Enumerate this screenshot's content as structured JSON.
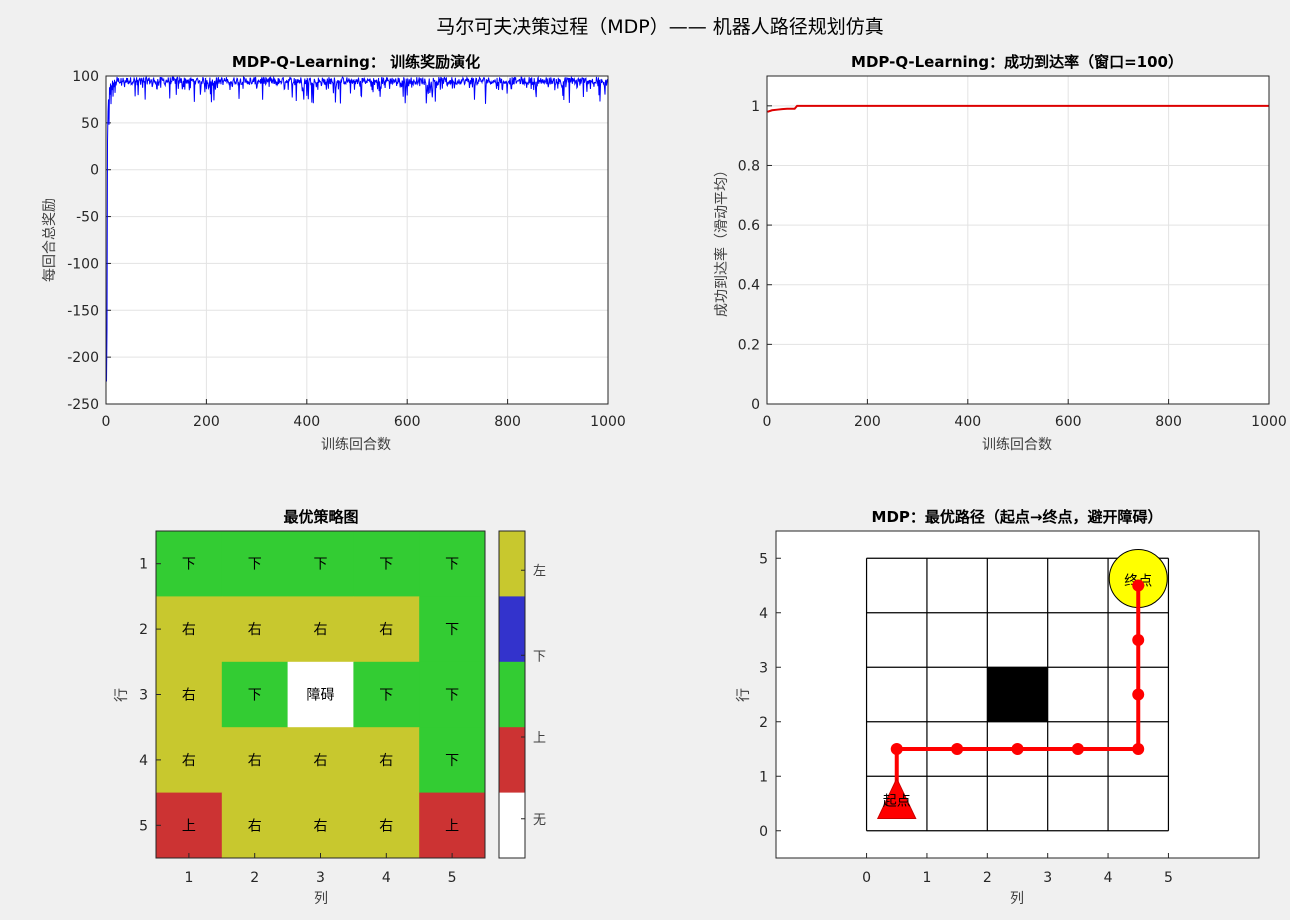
{
  "figure": {
    "suptitle": "马尔可夫决策过程（MDP）—— 机器人路径规划仿真"
  },
  "chart_data": [
    {
      "id": "reward",
      "type": "line",
      "title": "MDP-Q-Learning：  训练奖励演化",
      "xlabel": "训练回合数",
      "ylabel": "每回合总奖励",
      "xlim": [
        0,
        1000
      ],
      "ylim": [
        -250,
        100
      ],
      "xticks": [
        0,
        200,
        400,
        600,
        800,
        1000
      ],
      "yticks": [
        -250,
        -200,
        -150,
        -100,
        -50,
        0,
        50,
        100
      ],
      "grid": true,
      "color": "#0000ff",
      "series": [
        {
          "values_note": "episodes 1..1000; early spike down to about -226, then mostly 85-98 with dips to ~70",
          "start": [
            -226,
            -170,
            30,
            62,
            75,
            48,
            88,
            80,
            92,
            70,
            90,
            85,
            95,
            78,
            93,
            88,
            96,
            82,
            94,
            90
          ],
          "typical": 97,
          "dip_min": 70,
          "episodes": 1000
        }
      ]
    },
    {
      "id": "success",
      "type": "line",
      "title": "MDP-Q-Learning：成功到达率（窗口=100）",
      "xlabel": "训练回合数",
      "ylabel": "成功到达率（滑动平均）",
      "xlim": [
        0,
        1000
      ],
      "ylim": [
        0,
        1.1
      ],
      "xticks": [
        0,
        200,
        400,
        600,
        800,
        1000
      ],
      "yticks": [
        0,
        0.2,
        0.4,
        0.6,
        0.8,
        1
      ],
      "grid": true,
      "color": "#dd0000",
      "series": [
        {
          "x": [
            1,
            10,
            20,
            30,
            40,
            50,
            55,
            60,
            1000
          ],
          "values": [
            0.98,
            0.985,
            0.987,
            0.989,
            0.99,
            0.99,
            0.99,
            1.0,
            1.0
          ]
        }
      ]
    },
    {
      "id": "policy",
      "type": "heatmap",
      "title": "最优策略图",
      "xlabel": "列",
      "ylabel": "行",
      "xticks": [
        1,
        2,
        3,
        4,
        5
      ],
      "yticks": [
        1,
        2,
        3,
        4,
        5
      ],
      "cells": [
        [
          "下",
          "下",
          "下",
          "下",
          "下"
        ],
        [
          "右",
          "右",
          "右",
          "右",
          "下"
        ],
        [
          "右",
          "下",
          "障碍",
          "下",
          "下"
        ],
        [
          "右",
          "右",
          "右",
          "右",
          "下"
        ],
        [
          "上",
          "右",
          "右",
          "右",
          "上"
        ]
      ],
      "colormap": [
        {
          "label": "左",
          "color": "#c8c82e"
        },
        {
          "label": "下",
          "color": "#3333cc"
        },
        {
          "label": "上",
          "color": "#33cc33"
        },
        {
          "label": "",
          "color": "#cc3333"
        },
        {
          "label": "无",
          "color": "#ffffff"
        }
      ],
      "colorbar_labels": [
        "左",
        "下",
        "上",
        "无"
      ],
      "color_for_text": {
        "右": "#c8c82e",
        "下": "#33cc33",
        "上": "#cc3333",
        "障碍": "#ffffff"
      }
    },
    {
      "id": "path",
      "type": "scatter",
      "title": "MDP：最优路径（起点→终点，避开障碍）",
      "xlabel": "列",
      "ylabel": "行",
      "xlim": [
        -1.5,
        6.5
      ],
      "ylim": [
        -0.5,
        5.5
      ],
      "xticks": [
        0,
        1,
        2,
        3,
        4,
        5
      ],
      "yticks": [
        0,
        1,
        2,
        3,
        4,
        5
      ],
      "grid_cells": 5,
      "obstacle": [
        2,
        2
      ],
      "path": [
        [
          0.5,
          1.5
        ],
        [
          1.5,
          1.5
        ],
        [
          2.5,
          1.5
        ],
        [
          3.5,
          1.5
        ],
        [
          4.5,
          1.5
        ],
        [
          4.5,
          2.5
        ],
        [
          4.5,
          3.5
        ],
        [
          4.5,
          4.5
        ]
      ],
      "start": {
        "x": 0.5,
        "y": 0.5,
        "label": "起点"
      },
      "goal": {
        "x": 4.5,
        "y": 4.5,
        "label": "终点"
      },
      "path_color": "#ff0000",
      "goal_color": "#ffff00"
    }
  ]
}
